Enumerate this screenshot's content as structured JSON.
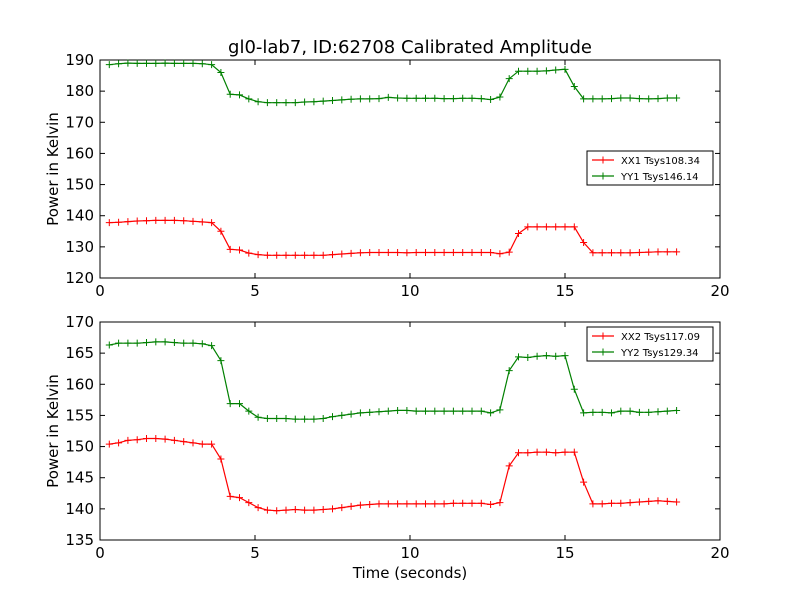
{
  "figure": {
    "title": "gl0-lab7, ID:62708 Calibrated Amplitude",
    "xlabel": "Time (seconds)"
  },
  "chart_data": [
    {
      "type": "line",
      "title": "gl0-lab7, ID:62708 Calibrated Amplitude",
      "xlabel": "",
      "ylabel": "Power in Kelvin",
      "xlim": [
        0,
        20
      ],
      "ylim": [
        120,
        190
      ],
      "xticks": [
        "0",
        "5",
        "10",
        "15",
        "20"
      ],
      "yticks": [
        "120",
        "130",
        "140",
        "150",
        "160",
        "170",
        "180",
        "190"
      ],
      "grid": false,
      "legend": "center-right",
      "x": [
        0.3,
        0.6,
        0.9,
        1.2,
        1.5,
        1.8,
        2.1,
        2.4,
        2.7,
        3.0,
        3.3,
        3.6,
        3.9,
        4.2,
        4.5,
        4.8,
        5.1,
        5.4,
        5.7,
        6.0,
        6.3,
        6.6,
        6.9,
        7.2,
        7.5,
        7.8,
        8.1,
        8.4,
        8.7,
        9.0,
        9.3,
        9.6,
        9.9,
        10.2,
        10.5,
        10.8,
        11.1,
        11.4,
        11.7,
        12.0,
        12.3,
        12.6,
        12.9,
        13.2,
        13.5,
        13.8,
        14.1,
        14.4,
        14.7,
        15.0,
        15.3,
        15.6,
        15.9,
        16.2,
        16.5,
        16.8,
        17.1,
        17.4,
        17.7,
        18.0,
        18.3,
        18.6
      ],
      "series": [
        {
          "name": "XX1 Tsys108.34",
          "color": "#ff0000",
          "values": [
            137.8,
            137.9,
            138.1,
            138.3,
            138.4,
            138.5,
            138.5,
            138.5,
            138.4,
            138.2,
            138.0,
            137.8,
            135.0,
            129.2,
            129.0,
            128.0,
            127.5,
            127.3,
            127.3,
            127.3,
            127.3,
            127.3,
            127.3,
            127.3,
            127.5,
            127.7,
            127.9,
            128.1,
            128.2,
            128.2,
            128.2,
            128.2,
            128.1,
            128.2,
            128.2,
            128.2,
            128.2,
            128.2,
            128.2,
            128.2,
            128.2,
            128.2,
            127.8,
            128.3,
            134.3,
            136.4,
            136.4,
            136.4,
            136.4,
            136.4,
            136.4,
            131.4,
            128.1,
            128.1,
            128.1,
            128.1,
            128.1,
            128.2,
            128.3,
            128.4,
            128.4,
            128.4
          ]
        },
        {
          "name": "YY1 Tsys146.14",
          "color": "#008000",
          "values": [
            188.5,
            188.8,
            189.0,
            188.9,
            188.9,
            188.9,
            189.0,
            188.9,
            188.9,
            188.9,
            188.8,
            188.5,
            186.0,
            179.0,
            178.8,
            177.5,
            176.6,
            176.3,
            176.3,
            176.3,
            176.3,
            176.5,
            176.6,
            176.8,
            177.0,
            177.2,
            177.4,
            177.5,
            177.5,
            177.6,
            178.0,
            177.8,
            177.7,
            177.7,
            177.7,
            177.7,
            177.6,
            177.6,
            177.7,
            177.7,
            177.6,
            177.3,
            178.1,
            184.0,
            186.4,
            186.4,
            186.4,
            186.5,
            186.8,
            187.0,
            181.5,
            177.5,
            177.5,
            177.5,
            177.6,
            177.8,
            177.8,
            177.6,
            177.5,
            177.6,
            177.8,
            177.8
          ]
        }
      ]
    },
    {
      "type": "line",
      "title": "",
      "xlabel": "Time (seconds)",
      "ylabel": "Power in Kelvin",
      "xlim": [
        0,
        20
      ],
      "ylim": [
        135,
        170
      ],
      "xticks": [
        "0",
        "5",
        "10",
        "15",
        "20"
      ],
      "yticks": [
        "135",
        "140",
        "145",
        "150",
        "155",
        "160",
        "165",
        "170"
      ],
      "grid": false,
      "legend": "top-right",
      "x": [
        0.3,
        0.6,
        0.9,
        1.2,
        1.5,
        1.8,
        2.1,
        2.4,
        2.7,
        3.0,
        3.3,
        3.6,
        3.9,
        4.2,
        4.5,
        4.8,
        5.1,
        5.4,
        5.7,
        6.0,
        6.3,
        6.6,
        6.9,
        7.2,
        7.5,
        7.8,
        8.1,
        8.4,
        8.7,
        9.0,
        9.3,
        9.6,
        9.9,
        10.2,
        10.5,
        10.8,
        11.1,
        11.4,
        11.7,
        12.0,
        12.3,
        12.6,
        12.9,
        13.2,
        13.5,
        13.8,
        14.1,
        14.4,
        14.7,
        15.0,
        15.3,
        15.6,
        15.9,
        16.2,
        16.5,
        16.8,
        17.1,
        17.4,
        17.7,
        18.0,
        18.3,
        18.6
      ],
      "series": [
        {
          "name": "XX2 Tsys117.09",
          "color": "#ff0000",
          "values": [
            150.4,
            150.6,
            151.0,
            151.1,
            151.3,
            151.3,
            151.2,
            151.0,
            150.8,
            150.6,
            150.4,
            150.4,
            148.0,
            142.0,
            141.8,
            141.0,
            140.2,
            139.8,
            139.7,
            139.8,
            139.9,
            139.8,
            139.8,
            139.9,
            140.0,
            140.2,
            140.4,
            140.6,
            140.7,
            140.8,
            140.8,
            140.8,
            140.8,
            140.8,
            140.8,
            140.8,
            140.8,
            140.9,
            140.9,
            140.9,
            140.9,
            140.7,
            141.0,
            146.9,
            149.0,
            149.0,
            149.1,
            149.1,
            149.0,
            149.1,
            149.1,
            144.3,
            140.8,
            140.8,
            140.9,
            140.9,
            141.0,
            141.1,
            141.2,
            141.3,
            141.2,
            141.1
          ]
        },
        {
          "name": "YY2 Tsys129.34",
          "color": "#008000",
          "values": [
            166.3,
            166.6,
            166.6,
            166.6,
            166.7,
            166.8,
            166.8,
            166.7,
            166.6,
            166.6,
            166.5,
            166.2,
            163.8,
            156.9,
            156.9,
            155.7,
            154.7,
            154.5,
            154.5,
            154.5,
            154.4,
            154.4,
            154.4,
            154.5,
            154.8,
            155.0,
            155.2,
            155.4,
            155.5,
            155.6,
            155.7,
            155.8,
            155.8,
            155.7,
            155.7,
            155.7,
            155.7,
            155.7,
            155.7,
            155.7,
            155.7,
            155.4,
            155.9,
            162.2,
            164.4,
            164.3,
            164.5,
            164.6,
            164.5,
            164.6,
            159.2,
            155.4,
            155.5,
            155.5,
            155.4,
            155.7,
            155.7,
            155.5,
            155.5,
            155.6,
            155.7,
            155.8
          ]
        }
      ]
    }
  ]
}
